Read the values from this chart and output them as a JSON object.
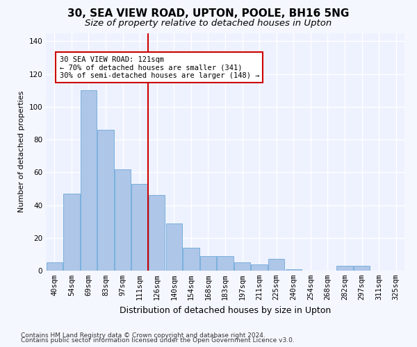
{
  "title1": "30, SEA VIEW ROAD, UPTON, POOLE, BH16 5NG",
  "title2": "Size of property relative to detached houses in Upton",
  "xlabel": "Distribution of detached houses by size in Upton",
  "ylabel": "Number of detached properties",
  "categories": [
    "40sqm",
    "54sqm",
    "69sqm",
    "83sqm",
    "97sqm",
    "111sqm",
    "126sqm",
    "140sqm",
    "154sqm",
    "168sqm",
    "183sqm",
    "197sqm",
    "211sqm",
    "225sqm",
    "240sqm",
    "254sqm",
    "268sqm",
    "282sqm",
    "297sqm",
    "311sqm",
    "325sqm"
  ],
  "values": [
    5,
    47,
    110,
    86,
    62,
    53,
    46,
    29,
    14,
    9,
    9,
    5,
    4,
    7,
    1,
    0,
    0,
    3,
    3,
    0,
    0
  ],
  "bar_color": "#aec6e8",
  "bar_edge_color": "#5a9fd4",
  "annotation_line1": "30 SEA VIEW ROAD: 121sqm",
  "annotation_line2": "← 70% of detached houses are smaller (341)",
  "annotation_line3": "30% of semi-detached houses are larger (148) →",
  "annotation_box_color": "#ffffff",
  "annotation_box_edge_color": "#cc0000",
  "vline_color": "#cc0000",
  "ylim": [
    0,
    145
  ],
  "yticks": [
    0,
    20,
    40,
    60,
    80,
    100,
    120,
    140
  ],
  "footer1": "Contains HM Land Registry data © Crown copyright and database right 2024.",
  "footer2": "Contains public sector information licensed under the Open Government Licence v3.0.",
  "bg_color": "#eef2ff",
  "grid_color": "#ffffff",
  "title1_fontsize": 11,
  "title2_fontsize": 9.5,
  "xlabel_fontsize": 9,
  "ylabel_fontsize": 8,
  "tick_fontsize": 7.5,
  "footer_fontsize": 6.5,
  "annotation_fontsize": 7.5
}
